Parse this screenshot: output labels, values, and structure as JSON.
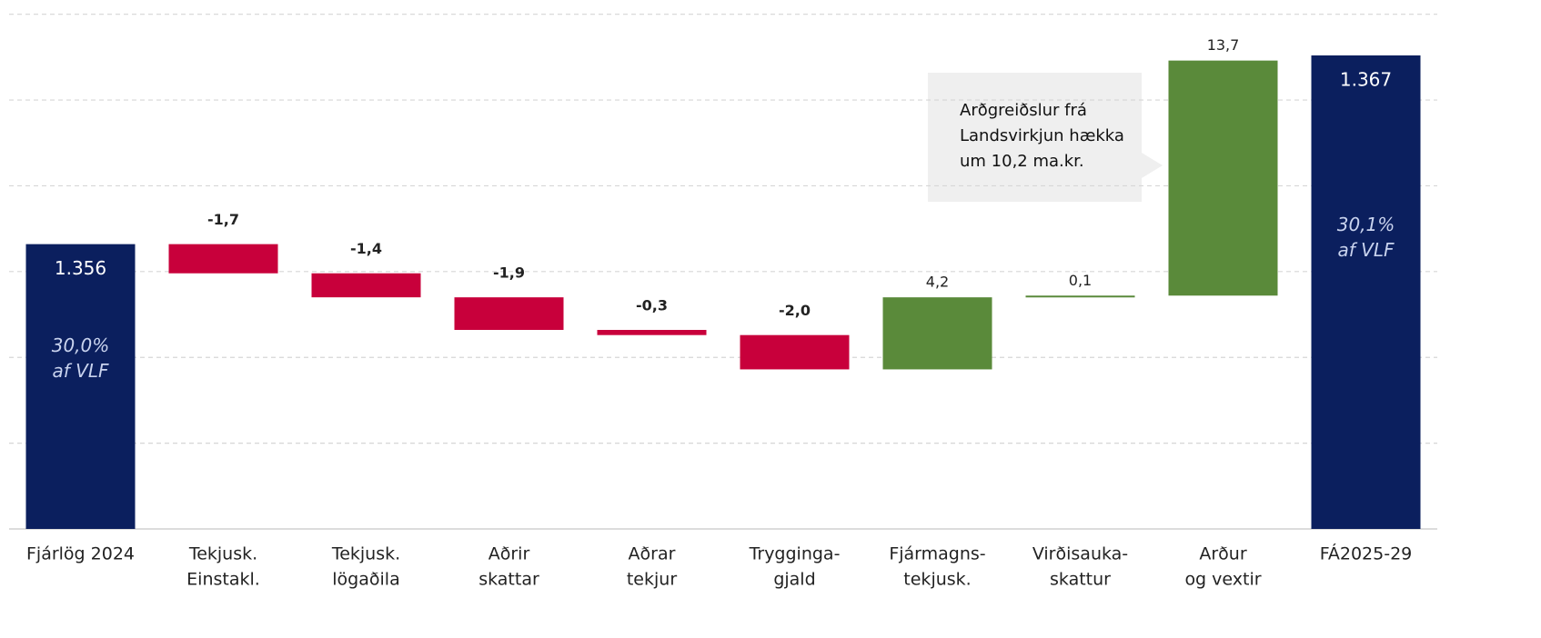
{
  "chart_data": {
    "type": "waterfall",
    "categories": [
      [
        "Fjárlög 2024"
      ],
      [
        "Tekjusk.",
        "Einstakl."
      ],
      [
        "Tekjusk.",
        "lögaðila"
      ],
      [
        "Aðrir",
        "skattar"
      ],
      [
        "Aðrar",
        "tekjur"
      ],
      [
        "Trygginga-",
        "gjald"
      ],
      [
        "Fjármagns-",
        "tekjusk."
      ],
      [
        "Virðisauka-",
        "skattur"
      ],
      [
        "Arður",
        "og vextir"
      ],
      [
        "FÁ2025-29"
      ]
    ],
    "values": [
      1356,
      -1.7,
      -1.4,
      -1.9,
      -0.3,
      -2.0,
      4.2,
      0.1,
      13.7,
      1367
    ],
    "value_labels": [
      "1.356",
      "-1,7",
      "-1,4",
      "-1,9",
      "-0,3",
      "-2,0",
      "4,2",
      "0,1",
      "13,7",
      "1.367"
    ],
    "is_total": [
      true,
      false,
      false,
      false,
      false,
      false,
      false,
      false,
      false,
      true
    ],
    "bar_notes": [
      [
        "30,0%",
        "af VLF"
      ],
      null,
      null,
      null,
      null,
      null,
      null,
      null,
      null,
      [
        "30,1%",
        "af VLF"
      ]
    ],
    "colors": {
      "total": "#0b1f5e",
      "increase": "#5a8a3a",
      "decrease": "#c8003b"
    },
    "callout": [
      "Arðgreiðslur frá",
      "Landsvirkjun hækka",
      "um 10,2 ma.kr."
    ],
    "ylim": [
      1339.4,
      1369.7
    ],
    "yticks": [
      1339.4,
      1344.4,
      1349.4,
      1354.4,
      1359.4,
      1364.4,
      1369.4
    ],
    "grid": true
  }
}
